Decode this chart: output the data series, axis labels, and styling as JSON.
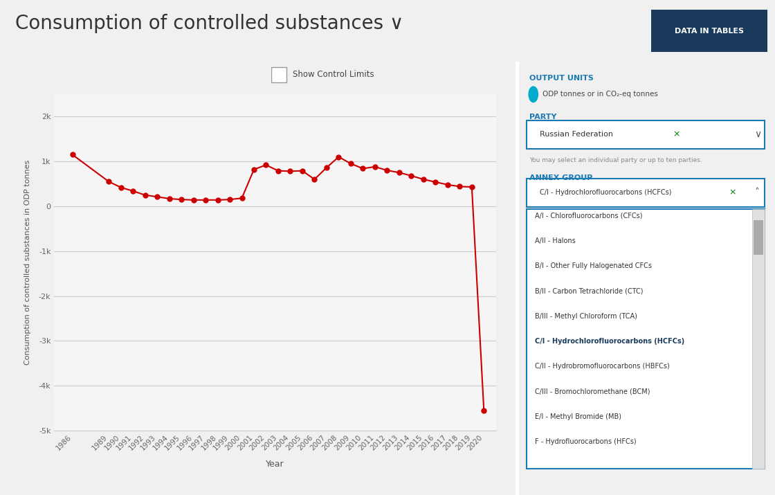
{
  "title": "Consumption of controlled substances ∨",
  "btn_label": "DATA IN TABLES",
  "show_control_limits_label": "Show Control Limits",
  "output_units_label": "OUTPUT UNITS",
  "output_units_value": "ODP tonnes or in CO₂-eq tonnes",
  "party_label": "PARTY",
  "party_value": "Russian Federation ×",
  "party_note": "You may select an individual party or up to ten parties.",
  "annex_label": "ANNEX GROUP",
  "annex_selected": "C/I - Hydrochlorofluorocarbons (HCFCs) ×",
  "annex_options": [
    "A/I - Chlorofluorocarbons (CFCs)",
    "A/II - Halons",
    "B/I - Other Fully Halogenated CFCs",
    "B/II - Carbon Tetrachloride (CTC)",
    "B/III - Methyl Chloroform (TCA)",
    "C/I - Hydrochlorofluorocarbons (HCFCs)",
    "C/II - Hydrobromofluorocarbons (HBFCs)",
    "C/III - Bromochloromethane (BCM)",
    "E/I - Methyl Bromide (MB)",
    "F - Hydrofluorocarbons (HFCs)"
  ],
  "years": [
    1986,
    1989,
    1990,
    1991,
    1992,
    1993,
    1994,
    1995,
    1996,
    1997,
    1998,
    1999,
    2000,
    2001,
    2002,
    2003,
    2004,
    2005,
    2006,
    2007,
    2008,
    2009,
    2010,
    2011,
    2012,
    2013,
    2014,
    2015,
    2016,
    2017,
    2018,
    2019,
    2020
  ],
  "values": [
    1150,
    550,
    420,
    340,
    250,
    210,
    170,
    150,
    140,
    140,
    140,
    150,
    180,
    820,
    920,
    790,
    780,
    790,
    600,
    860,
    1100,
    950,
    840,
    880,
    800,
    750,
    680,
    600,
    540,
    480,
    440,
    430,
    -4550
  ],
  "line_color": "#cc0000",
  "marker_color": "#cc0000",
  "marker_size": 5,
  "ylabel": "Consumption of controlled substances in ODP tonnes",
  "xlabel": "Year",
  "legend_label": "Hydrochlorofluorocarbons (HCFCs)",
  "ylim": [
    -5000,
    2500
  ],
  "yticks": [
    -5000,
    -4000,
    -3000,
    -2000,
    -1000,
    0,
    1000,
    2000
  ],
  "ytick_labels": [
    "-5k",
    "-4k",
    "-3k",
    "-2k",
    "-1k",
    "0",
    "1k",
    "2k"
  ],
  "bg_color": "#f5f5f5",
  "plot_bg_color": "#f5f5f5",
  "grid_color": "#cccccc",
  "title_color": "#333333",
  "title_fontsize": 20,
  "sidebar_bg": "#ffffff",
  "btn_bg": "#1a3a5c",
  "btn_text_color": "#ffffff",
  "label_blue": "#1a7ab5",
  "dropdown_border": "#1a7ab5",
  "highlight_color": "#1a3a5c"
}
